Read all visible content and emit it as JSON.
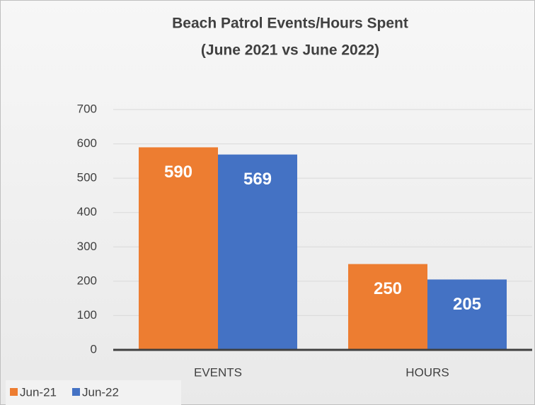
{
  "chart_data": {
    "type": "bar",
    "title": "Beach Patrol Events/Hours Spent",
    "subtitle": "(June 2021 vs June 2022)",
    "categories": [
      "EVENTS",
      "HOURS"
    ],
    "series": [
      {
        "name": "Jun-21",
        "color": "#ed7d31",
        "values": [
          590,
          250
        ]
      },
      {
        "name": "Jun-22",
        "color": "#4472c4",
        "values": [
          569,
          205
        ]
      }
    ],
    "ylim": [
      0,
      700
    ],
    "yticks": [
      0,
      100,
      200,
      300,
      400,
      500,
      600,
      700
    ],
    "grid": true,
    "legend": "bottom-left"
  }
}
